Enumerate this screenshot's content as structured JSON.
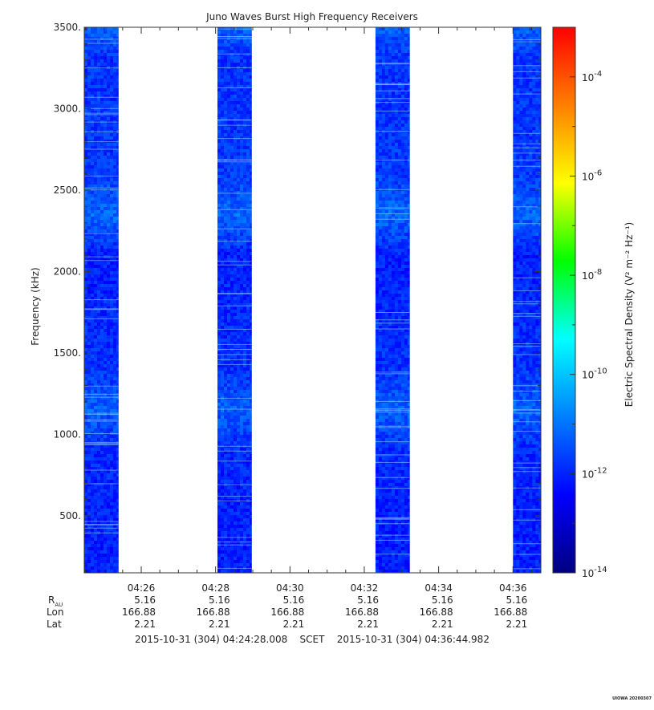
{
  "chart_data": {
    "type": "heatmap",
    "title": "Juno Waves Burst High Frequency Receivers",
    "ylabel": "Frequency (kHz)",
    "ylim": [
      150,
      3500
    ],
    "y_ticks": [
      {
        "value": 500,
        "label": "500."
      },
      {
        "value": 1000,
        "label": "1000."
      },
      {
        "value": 1500,
        "label": "1500."
      },
      {
        "value": 2000,
        "label": "2000."
      },
      {
        "value": 2500,
        "label": "2500."
      },
      {
        "value": 3000,
        "label": "3000."
      },
      {
        "value": 3500,
        "label": "3500."
      }
    ],
    "x_range": [
      "04:24:28.008",
      "04:36:44.982"
    ],
    "x_ticks": [
      "04:26",
      "04:28",
      "04:30",
      "04:32",
      "04:34",
      "04:36"
    ],
    "data_intervals": [
      [
        "04:24:28",
        "04:25:23"
      ],
      [
        "04:28:03",
        "04:28:58"
      ],
      [
        "04:32:18",
        "04:33:13"
      ],
      [
        "04:36:00",
        "04:36:45"
      ]
    ],
    "colorbar": {
      "label": "Electric Spectral Density (V² m⁻² Hz⁻¹)",
      "scale": "log",
      "range_exponent": [
        -14,
        -3
      ],
      "tick_base": "10",
      "tick_exponents": [
        "-14",
        "-12",
        "-10",
        "-8",
        "-6",
        "-4"
      ],
      "colors": [
        "#00007f",
        "#0000ff",
        "#007fff",
        "#00ffff",
        "#00ff00",
        "#ffff00",
        "#ff7f00",
        "#ff0000"
      ]
    },
    "spectrum_profile": [
      {
        "freq": 150,
        "log_density": -12.0
      },
      {
        "freq": 600,
        "log_density": -12.0
      },
      {
        "freq": 900,
        "log_density": -11.9
      },
      {
        "freq": 1150,
        "log_density": -11.2
      },
      {
        "freq": 1400,
        "log_density": -11.8
      },
      {
        "freq": 2100,
        "log_density": -12.0
      },
      {
        "freq": 2350,
        "log_density": -11.1
      },
      {
        "freq": 2600,
        "log_density": -11.7
      },
      {
        "freq": 3300,
        "log_density": -11.8
      },
      {
        "freq": 3500,
        "log_density": -11.2
      }
    ],
    "ephemeris": {
      "row_labels": {
        "rau": "R",
        "rau_sub": "AU",
        "lon": "Lon",
        "lat": "Lat"
      },
      "columns": [
        {
          "rau": "5.16",
          "lon": "166.88",
          "lat": "2.21"
        },
        {
          "rau": "5.16",
          "lon": "166.88",
          "lat": "2.21"
        },
        {
          "rau": "5.16",
          "lon": "166.88",
          "lat": "2.21"
        },
        {
          "rau": "5.16",
          "lon": "166.88",
          "lat": "2.21"
        },
        {
          "rau": "5.16",
          "lon": "166.88",
          "lat": "2.21"
        },
        {
          "rau": "5.16",
          "lon": "166.88",
          "lat": "2.21"
        }
      ]
    },
    "time_range_label": "2015-10-31 (304) 04:24:28.008    SCET    2015-10-31 (304) 04:36:44.982",
    "footer_stamp": "UIOWA 20200307"
  }
}
